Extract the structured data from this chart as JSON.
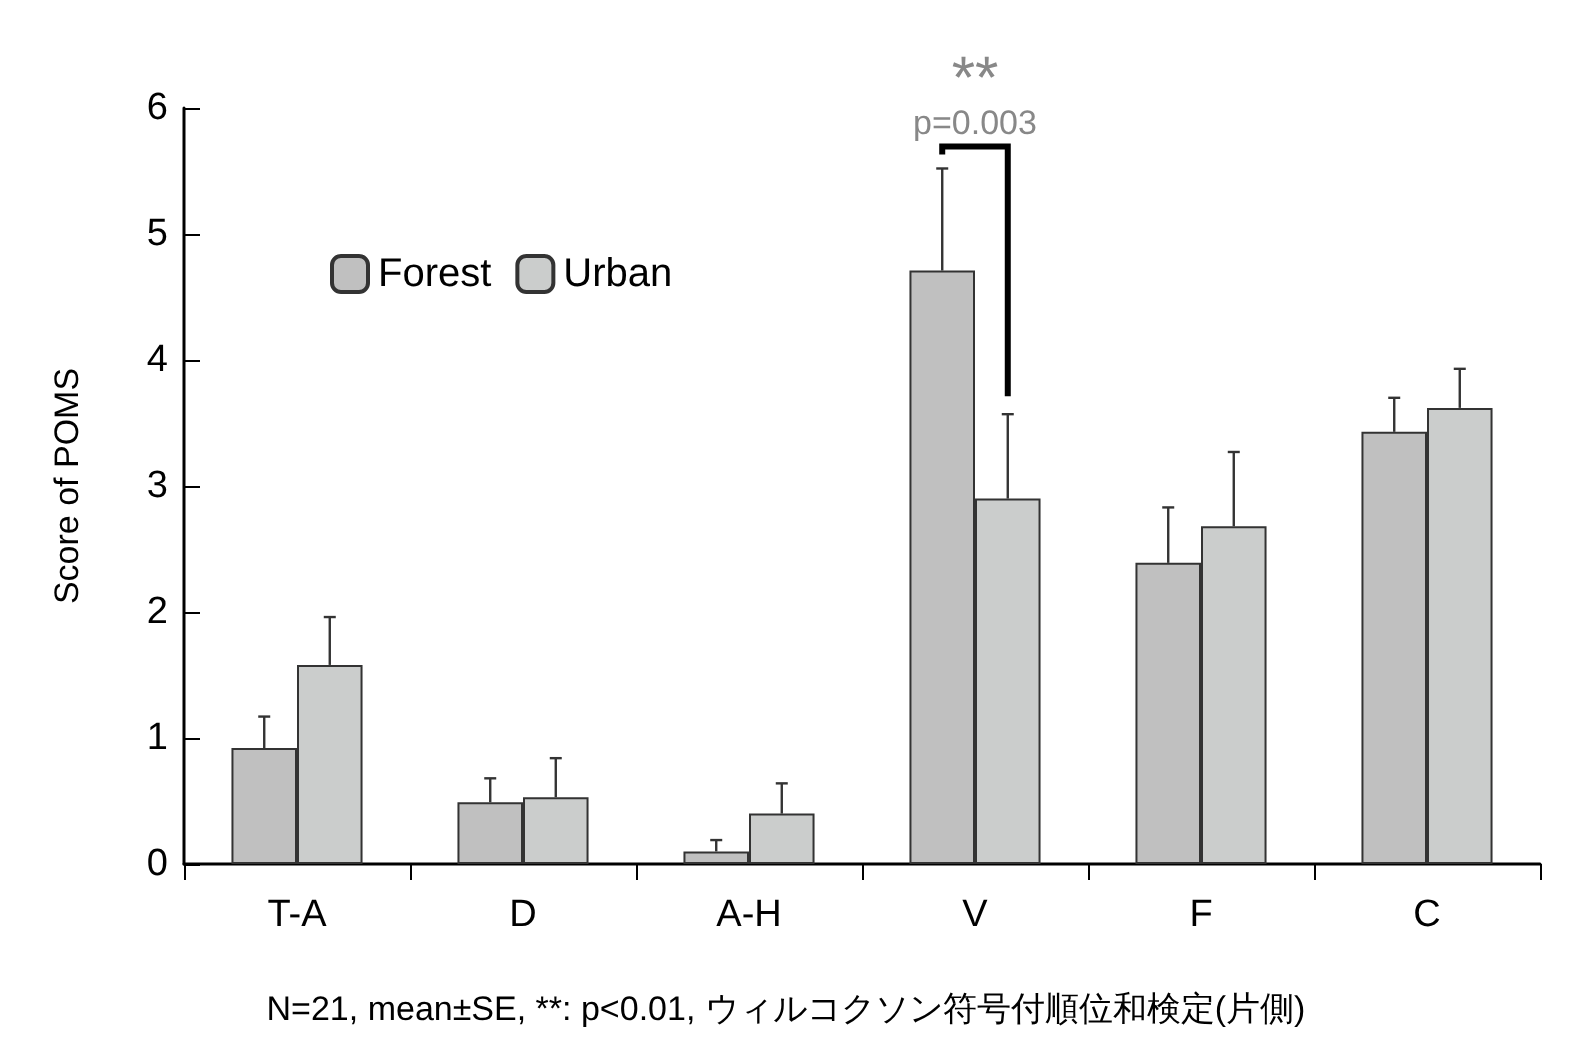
{
  "chart_data": {
    "type": "bar",
    "ylabel": "Score of POMS",
    "categories": [
      "T-A",
      "D",
      "A-H",
      "V",
      "F",
      "C"
    ],
    "series": [
      {
        "name": "Forest",
        "color": "#c0c0c0",
        "values": [
          0.92,
          0.49,
          0.1,
          4.71,
          2.39,
          3.43
        ],
        "errors": [
          [
            0.92,
            1.17
          ],
          [
            0.49,
            0.68
          ],
          [
            0.1,
            0.19
          ],
          [
            4.71,
            5.52
          ],
          [
            2.39,
            2.83
          ],
          [
            3.43,
            3.7
          ]
        ]
      },
      {
        "name": "Urban",
        "color": "#cbcdcc",
        "values": [
          1.58,
          0.53,
          0.4,
          2.9,
          2.68,
          3.62
        ],
        "errors": [
          [
            1.58,
            1.96
          ],
          [
            0.53,
            0.84
          ],
          [
            0.4,
            0.64
          ],
          [
            2.9,
            3.57
          ],
          [
            2.68,
            3.27
          ],
          [
            3.62,
            3.93
          ]
        ]
      }
    ],
    "ylim": [
      0,
      6
    ],
    "yticks": [
      0,
      1,
      2,
      3,
      4,
      5,
      6
    ],
    "grid": false,
    "legend": "top left",
    "annotations": [
      "**",
      "p=0.003",
      "N=21, mean±SE, **: p<0.01, ウィルコクソン符号付順位和検定(片側)"
    ]
  }
}
